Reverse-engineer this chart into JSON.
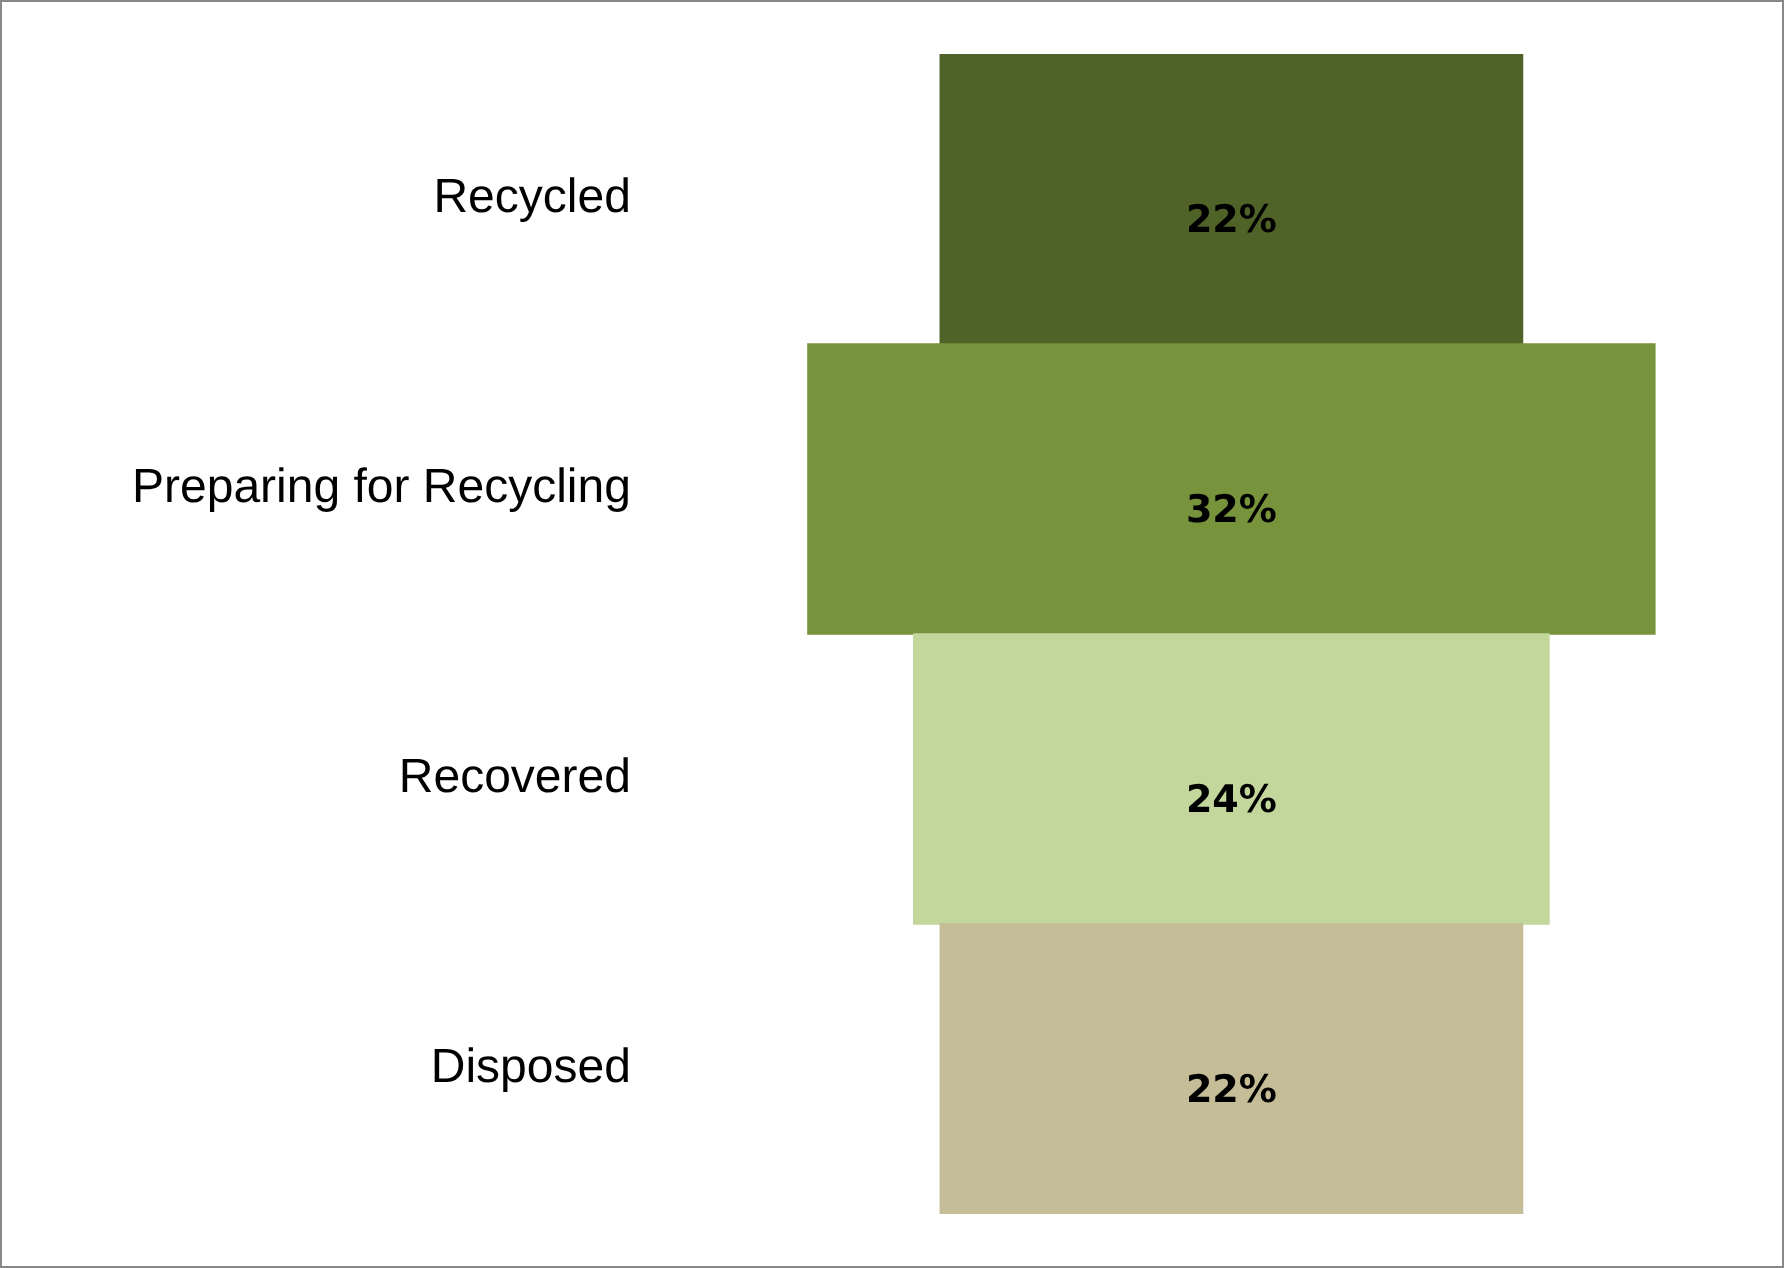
{
  "chart_data": {
    "type": "other",
    "categories": [
      "Recycled",
      "Preparing for Recycling",
      "Recovered",
      "Disposed"
    ],
    "values": [
      22,
      32,
      24,
      22
    ],
    "colors": [
      "#4f6228",
      "#77933c",
      "#c3d69b",
      "#c4bd97"
    ],
    "value_labels": [
      "22%",
      "32%",
      "24%",
      "22%"
    ],
    "legend": false
  }
}
